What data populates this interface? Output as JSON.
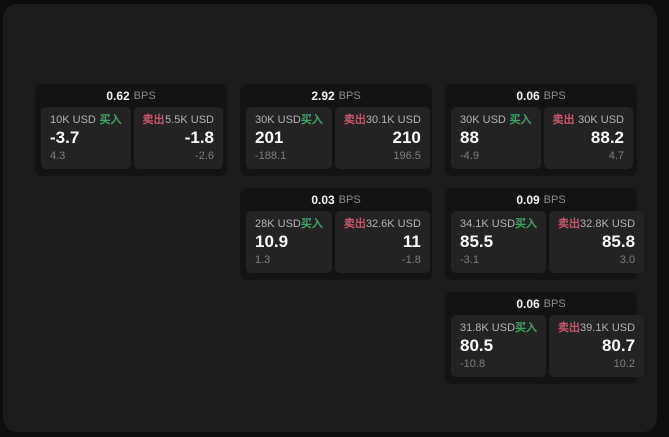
{
  "app": {
    "unit_label": "BPS",
    "buy_label": "买入",
    "sell_label": "卖出",
    "colors": {
      "buy_accent": "#3fa564",
      "sell_accent": "#c9556a",
      "panel_bg": "#1b1b1b",
      "card_bg": "#131313",
      "tile_bg": "#232323"
    },
    "cards": [
      {
        "bps": "0.62",
        "buy": {
          "amount": "10K USD",
          "price": "-3.7",
          "delta": "4.3"
        },
        "sell": {
          "amount": "5.5K USD",
          "price": "-1.8",
          "delta": "-2.6"
        }
      },
      {
        "bps": "2.92",
        "buy": {
          "amount": "30K USD",
          "price": "201",
          "delta": "-188.1"
        },
        "sell": {
          "amount": "30.1K USD",
          "price": "210",
          "delta": "196.5"
        }
      },
      {
        "bps": "0.06",
        "buy": {
          "amount": "30K USD",
          "price": "88",
          "delta": "-4.9"
        },
        "sell": {
          "amount": "30K USD",
          "price": "88.2",
          "delta": "4.7"
        }
      },
      {
        "bps": "0.03",
        "buy": {
          "amount": "28K USD",
          "price": "10.9",
          "delta": "1.3"
        },
        "sell": {
          "amount": "32.6K USD",
          "price": "11",
          "delta": "-1.8"
        }
      },
      {
        "bps": "0.09",
        "buy": {
          "amount": "34.1K USD",
          "price": "85.5",
          "delta": "-3.1"
        },
        "sell": {
          "amount": "32.8K USD",
          "price": "85.8",
          "delta": "3.0"
        }
      },
      {
        "bps": "0.06",
        "buy": {
          "amount": "31.8K USD",
          "price": "80.5",
          "delta": "-10.8"
        },
        "sell": {
          "amount": "39.1K USD",
          "price": "80.7",
          "delta": "10.2"
        }
      }
    ]
  }
}
